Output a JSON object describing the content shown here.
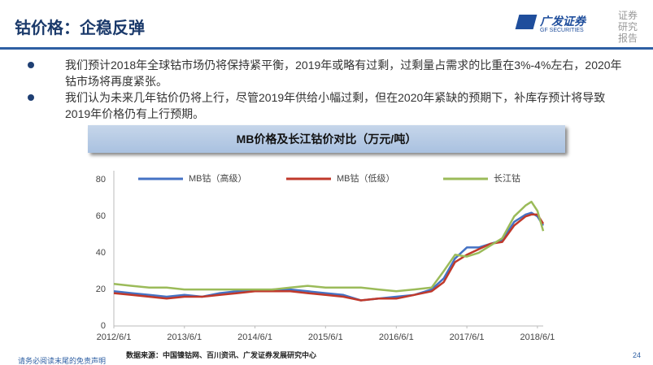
{
  "header": {
    "title": "钴价格：企稳反弹",
    "logo": "广发证券",
    "logo_sub": "GF SECURITIES",
    "report_tag": [
      "证券",
      "研究",
      "报告"
    ]
  },
  "bullets": [
    "我们预计2018年全球钴市场仍将保持紧平衡，2019年或略有过剩，过剩量占需求的比重在3%-4%左右，2020年钴市场将再度紧张。",
    "我们认为未来几年钴价仍将上行，尽管2019年供给小幅过剩，但在2020年紧缺的预期下，补库存预计将导致2019年价格仍有上行预期。"
  ],
  "chart_data": {
    "type": "line",
    "title": "MB价格及长江钴价对比（万元/吨）",
    "x": [
      "2012/6/1",
      "2012/9/1",
      "2012/12/1",
      "2013/3/1",
      "2013/6/1",
      "2013/9/1",
      "2013/12/1",
      "2014/3/1",
      "2014/6/1",
      "2014/9/1",
      "2014/12/1",
      "2015/3/1",
      "2015/6/1",
      "2015/9/1",
      "2015/12/1",
      "2016/3/1",
      "2016/6/1",
      "2016/9/1",
      "2016/12/1",
      "2017/2/1",
      "2017/4/1",
      "2017/6/1",
      "2017/8/1",
      "2017/10/1",
      "2017/12/1",
      "2018/2/1",
      "2018/4/1",
      "2018/5/1",
      "2018/6/1",
      "2018/7/1"
    ],
    "series": [
      {
        "name": "MB钴（高级）",
        "color": "#4472c4",
        "values": [
          19,
          18,
          17,
          16,
          17,
          16,
          18,
          19,
          19,
          20,
          20,
          19,
          18,
          17,
          14,
          15,
          16,
          17,
          20,
          26,
          37,
          43,
          43,
          45,
          47,
          57,
          61,
          62,
          60,
          55
        ]
      },
      {
        "name": "MB钴（低级）",
        "color": "#c0392b",
        "values": [
          18,
          17,
          16,
          15,
          16,
          16,
          17,
          18,
          19,
          19,
          19,
          18,
          17,
          16,
          14,
          15,
          15,
          17,
          19,
          24,
          35,
          39,
          42,
          45,
          46,
          55,
          60,
          61,
          61,
          56
        ]
      },
      {
        "name": "长江钴",
        "color": "#9bbb59",
        "values": [
          23,
          22,
          21,
          21,
          20,
          20,
          20,
          20,
          20,
          20,
          21,
          22,
          21,
          21,
          21,
          20,
          19,
          20,
          21,
          30,
          39,
          38,
          40,
          44,
          48,
          60,
          66,
          68,
          63,
          52
        ]
      }
    ],
    "xlim": [
      "2012/6/1",
      "2018/7/1"
    ],
    "xticks": [
      "2012/6/1",
      "2013/6/1",
      "2014/6/1",
      "2015/6/1",
      "2016/6/1",
      "2017/6/1",
      "2018/6/1"
    ],
    "ylim": [
      0,
      85
    ],
    "yticks": [
      0,
      20,
      40,
      60,
      80
    ],
    "grid": false,
    "legend": "top",
    "source": "数据来源：中国镍钴网、百川资讯、广发证券发展研究中心"
  },
  "footer": {
    "disclaimer": "请务必阅读末尾的免责声明",
    "page": "24"
  }
}
